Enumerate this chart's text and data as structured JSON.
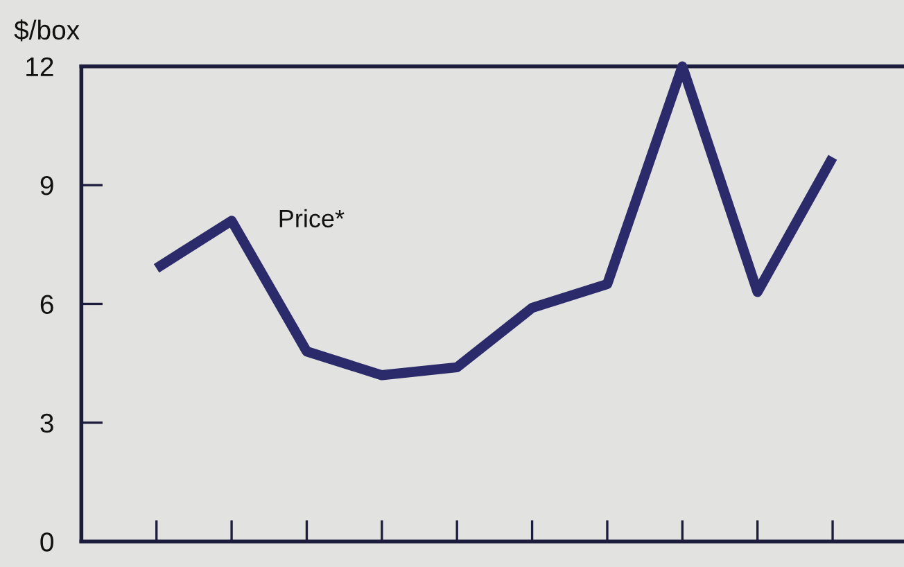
{
  "chart_data": {
    "type": "line",
    "ylabel": "$/box",
    "categories": [
      null,
      null,
      null,
      null,
      null,
      null,
      null,
      null,
      null,
      null
    ],
    "series": [
      {
        "name": "Price*",
        "color": "#2b2b6b",
        "values": [
          6.9,
          8.1,
          4.8,
          4.2,
          4.4,
          5.9,
          6.5,
          12,
          6.3,
          9.7
        ]
      }
    ],
    "ylim": [
      0,
      12
    ],
    "yticks": [
      0,
      3,
      6,
      9,
      12
    ],
    "grid": false,
    "legend": false,
    "tick_labels": "y",
    "marker": "none",
    "line_style": "solid"
  }
}
